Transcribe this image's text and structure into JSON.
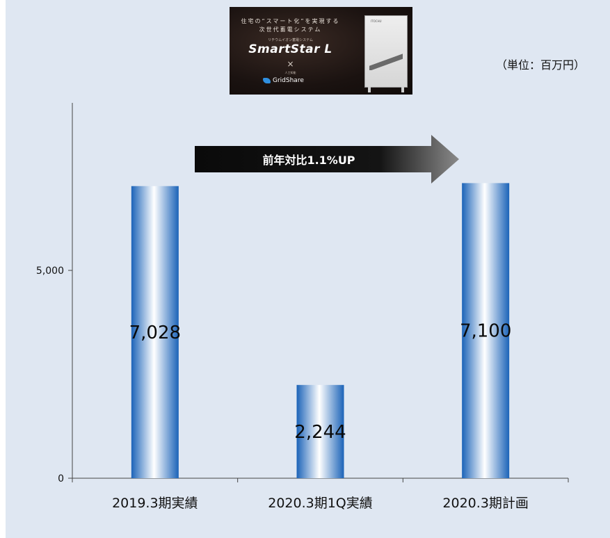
{
  "unit_label": "（単位：百万円）",
  "arrow_label": "前年対比1.1%UP",
  "banner": {
    "headline_1": "住宅の“スマート化”を実現する",
    "headline_2": "次世代蓄電システム",
    "tagline": "リチウムイオン蓄電システム",
    "product": "SmartStar L",
    "times": "×",
    "maker": "人工知能",
    "partner": "GridShare",
    "device_brand": "ITOCHU"
  },
  "colors": {
    "background": "#dfe7f2",
    "bar_edge": "#1b63b8",
    "bar_center": "#ffffff",
    "arrow": "#0f0f0f",
    "axis": "#444444"
  },
  "chart_data": {
    "type": "bar",
    "categories": [
      "2019.3期実績",
      "2020.3期1Q実績",
      "2020.3期計画"
    ],
    "values": [
      7028,
      2244,
      7100
    ],
    "value_labels": [
      "7,028",
      "2,244",
      "7,100"
    ],
    "ylim": [
      0,
      10000
    ],
    "yticks": [
      0,
      5000
    ],
    "ytick_labels": [
      "0",
      "5,000"
    ],
    "grid": false,
    "legend": "none"
  }
}
